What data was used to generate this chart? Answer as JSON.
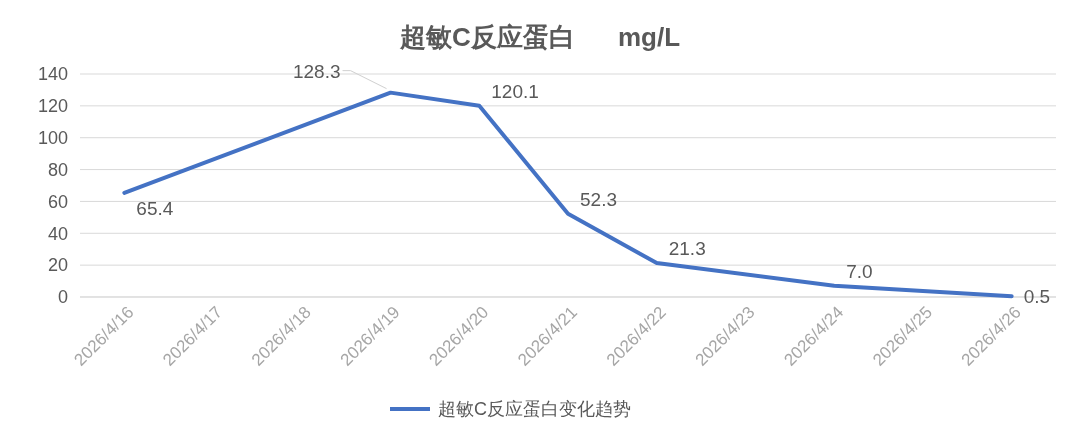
{
  "chart_data": {
    "type": "line",
    "title": "超敏C反应蛋白      mg/L",
    "x": [
      "2026-04-16",
      "2026-04-19",
      "2026-04-20",
      "2026-04-21",
      "2026-04-22",
      "2026-04-24",
      "2026-04-26"
    ],
    "series": [
      {
        "name": "超敏C反应蛋白变化趋势",
        "color": "#4472c4",
        "values": [
          65.4,
          128.3,
          120.1,
          52.3,
          21.3,
          7.0,
          0.5
        ],
        "value_labels": [
          "65.4",
          "128.3",
          "120.1",
          "52.3",
          "21.3",
          "7.0",
          "0.5"
        ]
      }
    ],
    "xlim": [
      "2026-04-15T12:00",
      "2026-04-26T12:00"
    ],
    "xticks": [
      {
        "value": "2026-04-16",
        "label": "2026/4/16"
      },
      {
        "value": "2026-04-17",
        "label": "2026/4/17"
      },
      {
        "value": "2026-04-18",
        "label": "2026/4/18"
      },
      {
        "value": "2026-04-19",
        "label": "2026/4/19"
      },
      {
        "value": "2026-04-20",
        "label": "2026/4/20"
      },
      {
        "value": "2026-04-21",
        "label": "2026/4/21"
      },
      {
        "value": "2026-04-22",
        "label": "2026/4/22"
      },
      {
        "value": "2026-04-23",
        "label": "2026/4/23"
      },
      {
        "value": "2026-04-24",
        "label": "2026/4/24"
      },
      {
        "value": "2026-04-25",
        "label": "2026/4/25"
      },
      {
        "value": "2026-04-26",
        "label": "2026/4/26"
      }
    ],
    "ylim": [
      0,
      140
    ],
    "yticks": [
      0,
      20,
      40,
      60,
      80,
      100,
      120,
      140
    ],
    "grid": "y",
    "legend": "bottom",
    "marker": "none",
    "line_style": "solid"
  }
}
